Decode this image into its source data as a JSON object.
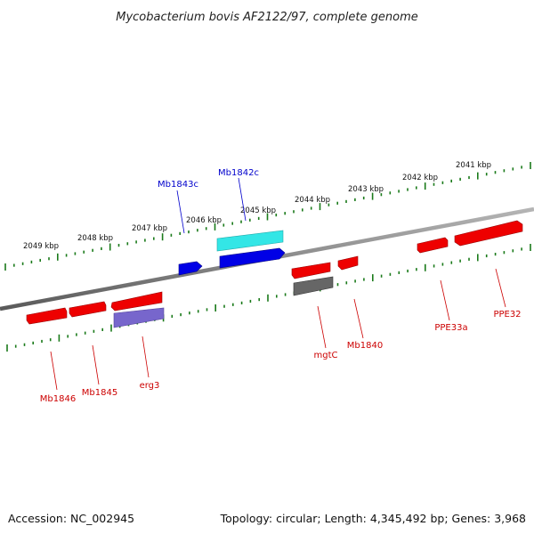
{
  "title": "Mycobacterium bovis AF2122/97, complete genome",
  "footer": {
    "accession": "Accession: NC_002945",
    "summary": "Topology: circular; Length: 4,345,492 bp; Genes: 3,968"
  },
  "colors": {
    "forward_label": "#0000cc",
    "reverse_label": "#cc0000",
    "backbone": "#8a8a8a",
    "ticks": "#1a7a1a"
  },
  "ticks": [
    "2041 kbp",
    "2042 kbp",
    "2043 kbp",
    "2044 kbp",
    "2045 kbp",
    "2046 kbp",
    "2047 kbp",
    "2048 kbp",
    "2049 kbp"
  ],
  "labels": {
    "mb1843c": "Mb1843c",
    "mb1842c": "Mb1842c",
    "mb1846": "Mb1846",
    "mb1845": "Mb1845",
    "erg3": "erg3",
    "mgtc": "mgtC",
    "mb1840": "Mb1840",
    "ppe33a": "PPE33a",
    "ppe32": "PPE32"
  },
  "features": [
    {
      "name": "gene-mb1842c-cyan",
      "color": "#33e6e6"
    },
    {
      "name": "gene-mb1842c-blue",
      "color": "#0000e6"
    },
    {
      "name": "gene-mb1843c",
      "color": "#0000e6"
    },
    {
      "name": "gene-ppe32",
      "color": "#ee0000"
    },
    {
      "name": "gene-ppe33a",
      "color": "#ee0000"
    },
    {
      "name": "gene-mb1840",
      "color": "#ee0000"
    },
    {
      "name": "gene-mgtc-red",
      "color": "#ee0000"
    },
    {
      "name": "gene-mgtc-gray",
      "color": "#666666"
    },
    {
      "name": "gene-erg3-red",
      "color": "#ee0000"
    },
    {
      "name": "gene-erg3-purple",
      "color": "#7766cc"
    },
    {
      "name": "gene-mb1845",
      "color": "#ee0000"
    },
    {
      "name": "gene-mb1846",
      "color": "#ee0000"
    }
  ]
}
